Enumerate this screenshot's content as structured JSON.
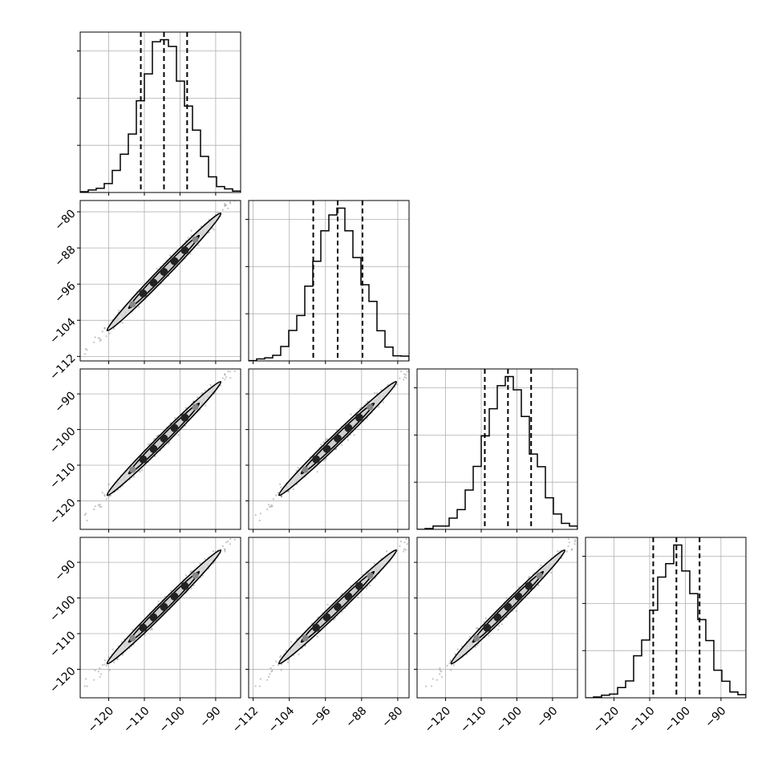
{
  "chart_data": {
    "type": "corner",
    "title": "",
    "n_params": 4,
    "params": [
      {
        "range": [
          -128,
          -83
        ],
        "ticks": [
          -120,
          -110,
          -100,
          -90
        ],
        "tick_labels": [
          "−120",
          "−110",
          "−100",
          "−90"
        ],
        "mean": -104.5,
        "sigma": 6.5,
        "quantiles": [
          -111,
          -104.5,
          -98
        ],
        "hist_bins": 20
      },
      {
        "range": [
          -113,
          -77.5
        ],
        "ticks": [
          -112,
          -104,
          -96,
          -88,
          -80
        ],
        "tick_labels": [
          "−112",
          "−104",
          "−96",
          "−88",
          "−80"
        ],
        "mean": -93.3,
        "sigma": 5.3,
        "quantiles": [
          -98.7,
          -93.3,
          -87.8
        ],
        "hist_bins": 20
      },
      {
        "range": [
          -128,
          -83
        ],
        "ticks": [
          -120,
          -110,
          -100,
          -90
        ],
        "tick_labels": [
          "−120",
          "−110",
          "−100",
          "−90"
        ],
        "mean": -102.5,
        "sigma": 6.5,
        "quantiles": [
          -109,
          -102.5,
          -96
        ],
        "hist_bins": 20
      },
      {
        "range": [
          -128,
          -83
        ],
        "ticks": [
          -120,
          -110,
          -100,
          -90
        ],
        "tick_labels": [
          "−120",
          "−110",
          "−100",
          "−90"
        ],
        "mean": -102.5,
        "sigma": 6.5,
        "quantiles": [
          -109,
          -102.5,
          -96
        ],
        "hist_bins": 20
      }
    ],
    "correlation": 0.995,
    "contour_levels": [
      "1-sigma",
      "2-sigma"
    ],
    "grid": true,
    "colors": {
      "line": "#000000",
      "fill": "#d9d9d9",
      "points": "#555555",
      "grid": "#b0b0b0"
    }
  }
}
